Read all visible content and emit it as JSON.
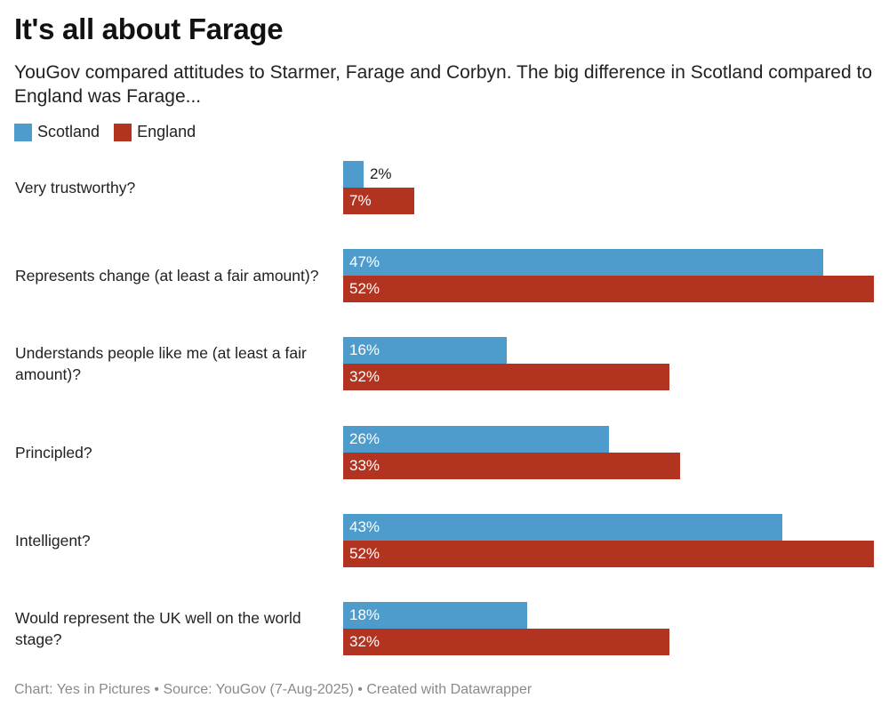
{
  "chart_data": {
    "type": "bar",
    "orientation": "horizontal",
    "title": "It's all about Farage",
    "subtitle": "YouGov compared attitudes to Starmer, Farage and Corbyn. The big difference in Scotland compared to England was Farage...",
    "categories": [
      "Very trustworthy?",
      "Represents change (at least a fair amount)?",
      "Understands people like me (at least a fair amount)?",
      "Principled?",
      "Intelligent?",
      "Would represent the UK well on the world stage?"
    ],
    "series": [
      {
        "name": "Scotland",
        "color": "#4e9ccb",
        "values": [
          2,
          47,
          16,
          26,
          43,
          18
        ]
      },
      {
        "name": "England",
        "color": "#b23320",
        "values": [
          7,
          52,
          32,
          33,
          52,
          32
        ]
      }
    ],
    "value_suffix": "%",
    "xlim": [
      0,
      52
    ],
    "legend_position": "top-left",
    "grid": false,
    "footer": "Chart: Yes in Pictures • Source: YouGov (7-Aug-2025) • Created with Datawrapper"
  }
}
